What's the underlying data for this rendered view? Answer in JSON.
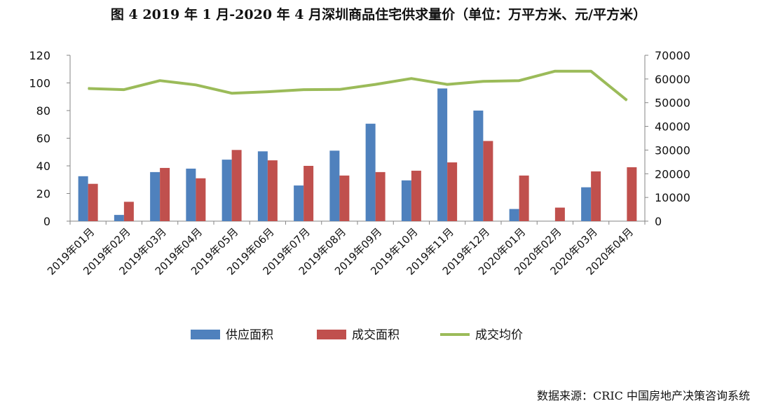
{
  "title": "图 4  2019 年 1 月-2020 年 4 月深圳商品住宅供求量价（单位：万平方米、元/平方米）",
  "source": "数据来源：CRIC 中国房地产决策咨询系统",
  "chart_data": {
    "type": "bar",
    "categories": [
      "2019年01月",
      "2019年02月",
      "2019年03月",
      "2019年04月",
      "2019年05月",
      "2019年06月",
      "2019年07月",
      "2019年08月",
      "2019年09月",
      "2019年10月",
      "2019年11月",
      "2019年12月",
      "2020年01月",
      "2020年02月",
      "2020年03月",
      "2020年04月"
    ],
    "series": [
      {
        "name": "供应面积",
        "kind": "bar",
        "axis": "left",
        "color": "#4F81BD",
        "values": [
          32.5,
          4.5,
          35.5,
          38,
          44.5,
          50.5,
          25.8,
          51,
          70.5,
          29.5,
          96,
          80,
          8.8,
          0,
          24.5,
          0
        ]
      },
      {
        "name": "成交面积",
        "kind": "bar",
        "axis": "left",
        "color": "#C0504D",
        "values": [
          27,
          14,
          38.5,
          31,
          51.5,
          44,
          40,
          33,
          35.5,
          36.5,
          42.5,
          58,
          33,
          9.8,
          36,
          39
        ]
      },
      {
        "name": "成交均价",
        "kind": "line",
        "axis": "right",
        "color": "#9BBB59",
        "values": [
          56000,
          55500,
          59300,
          57500,
          54000,
          54600,
          55500,
          55600,
          57700,
          60200,
          57700,
          59000,
          59300,
          63300,
          63300,
          51000
        ]
      }
    ],
    "yleft": {
      "min": 0,
      "max": 120,
      "ticks": [
        0,
        20,
        40,
        60,
        80,
        100,
        120
      ]
    },
    "yright": {
      "min": 0,
      "max": 70000,
      "ticks": [
        0,
        10000,
        20000,
        30000,
        40000,
        50000,
        60000,
        70000
      ]
    },
    "legend_position": "bottom",
    "grid": false
  }
}
